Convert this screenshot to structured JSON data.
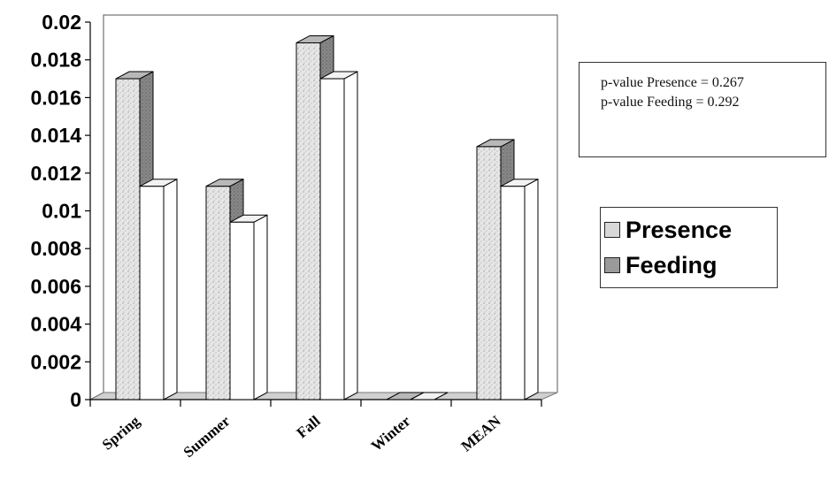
{
  "chart_data": {
    "type": "bar",
    "categories": [
      "Spring",
      "Summer",
      "Fall",
      "Winter",
      "MEAN"
    ],
    "series": [
      {
        "name": "Presence",
        "values": [
          0.017,
          0.0113,
          0.0189,
          0.0,
          0.0134
        ],
        "color": "#d4d4d4"
      },
      {
        "name": "Feeding",
        "values": [
          0.0113,
          0.0094,
          0.017,
          0.0,
          0.0113
        ],
        "color": "#ffffff"
      }
    ],
    "title": "",
    "xlabel": "",
    "ylabel": "",
    "ylim": [
      0,
      0.02
    ],
    "y_ticks": [
      "0",
      "0.002",
      "0.004",
      "0.006",
      "0.008",
      "0.01",
      "0.012",
      "0.014",
      "0.016",
      "0.018",
      "0.02"
    ],
    "grid": false,
    "legend_position": "right",
    "style": "3d-clustered-column"
  },
  "legend": [
    {
      "label": "Presence",
      "color": "#d8d8d8"
    },
    {
      "label": "Feeding",
      "color": "#9a9a9a"
    }
  ],
  "stats": {
    "presence_text": "p-value Presence = 0.267",
    "feeding_text": "p-value Feeding = 0.292"
  }
}
